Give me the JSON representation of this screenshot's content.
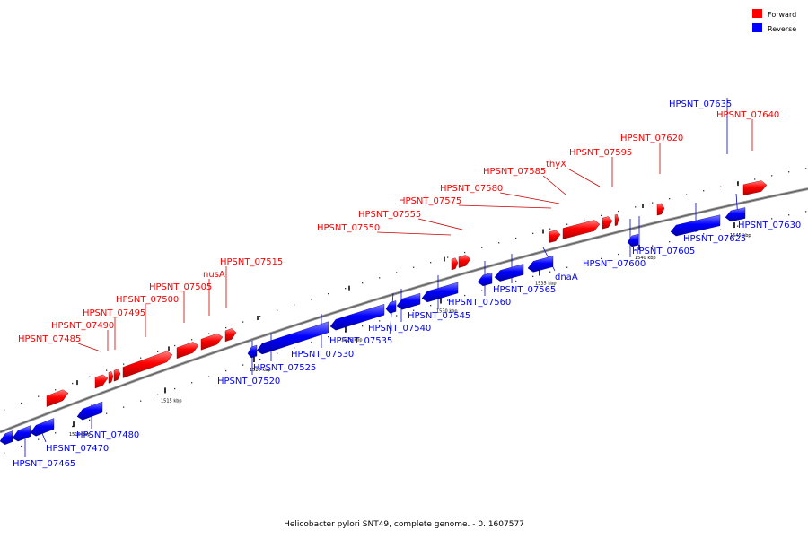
{
  "caption": "Helicobacter pylori SNT49, complete genome. - 0..1607577",
  "legend": [
    {
      "label": "Forward",
      "color": "#ff0000"
    },
    {
      "label": "Reverse",
      "color": "#0000ff"
    }
  ],
  "colors": {
    "forward": "#ff0000",
    "reverse": "#0000ff",
    "backbone": "#808080",
    "leader_forward": "#cc0000",
    "leader_reverse": "#0000cc"
  },
  "ticks": [
    "1510 kbp",
    "1515 kbp",
    "1520 kbp",
    "1525 kbp",
    "1530 kbp",
    "1535 kbp",
    "1540 kbp",
    "1545 kbp"
  ],
  "features_forward": [
    "HPSNT_07485",
    "HPSNT_07490",
    "HPSNT_07495",
    "HPSNT_07500",
    "HPSNT_07505",
    "nusA",
    "HPSNT_07515",
    "HPSNT_07550",
    "HPSNT_07555",
    "HPSNT_07575",
    "HPSNT_07580",
    "HPSNT_07585",
    "thyX",
    "HPSNT_07595",
    "HPSNT_07620",
    "HPSNT_07640"
  ],
  "features_reverse": [
    "HPSNT_07465",
    "HPSNT_07470",
    "HPSNT_07480",
    "HPSNT_07520",
    "HPSNT_07525",
    "HPSNT_07530",
    "HPSNT_07535",
    "HPSNT_07540",
    "HPSNT_07545",
    "HPSNT_07560",
    "HPSNT_07565",
    "dnaA",
    "HPSNT_07600",
    "HPSNT_07605",
    "HPSNT_07625",
    "HPSNT_07630",
    "HPSNT_07635"
  ]
}
